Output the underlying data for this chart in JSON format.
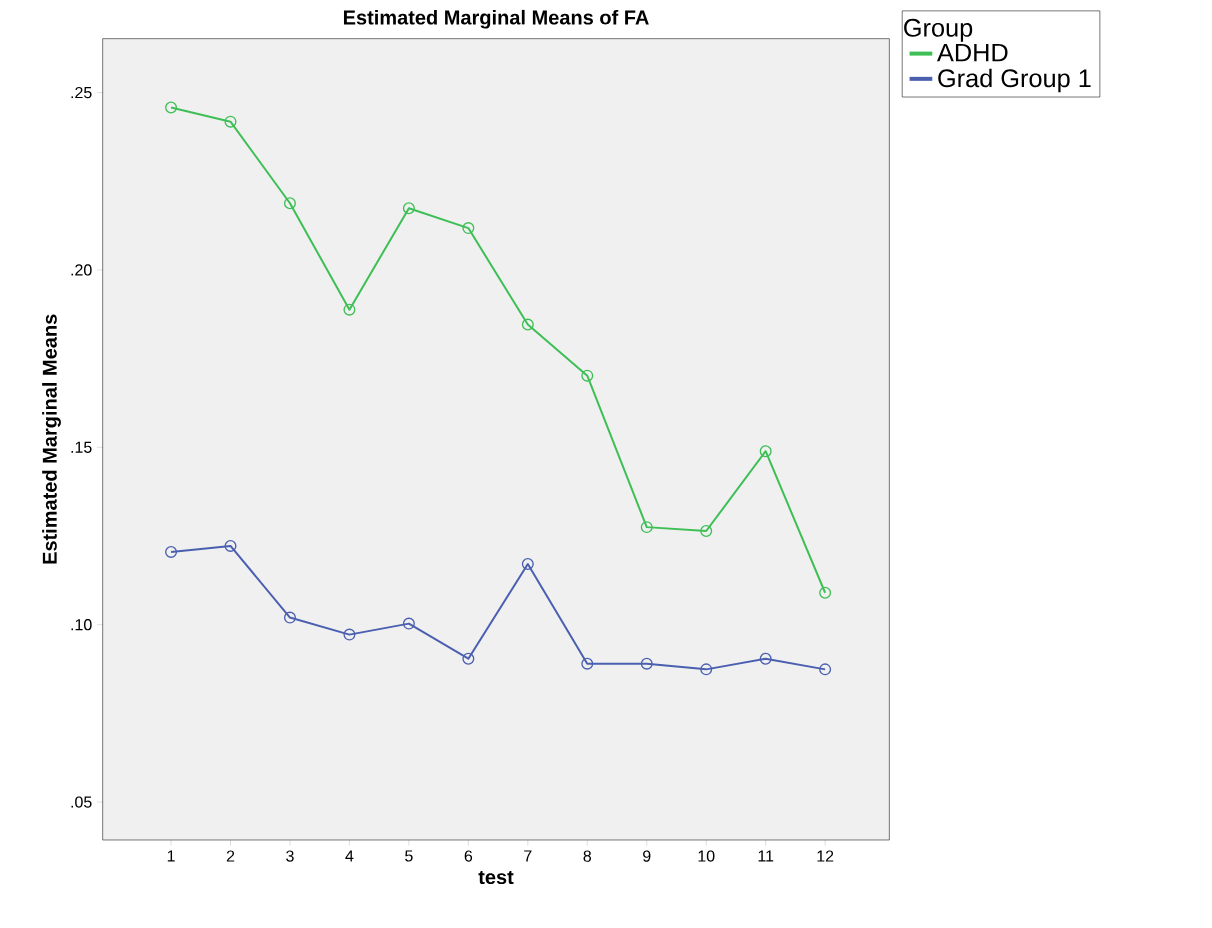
{
  "chart_data": {
    "type": "line",
    "title": "Estimated Marginal Means of FA",
    "xlabel": "test",
    "ylabel": "Estimated Marginal Means",
    "legend_title": "Group",
    "legend": "top right",
    "marker": "circle",
    "grid": false,
    "x": [
      1,
      2,
      3,
      4,
      5,
      6,
      7,
      8,
      9,
      10,
      11,
      12
    ],
    "series": [
      {
        "name": "ADHD",
        "color": "#3dbf55",
        "values": [
          0.2458,
          0.2418,
          0.2188,
          0.1888,
          0.2174,
          0.2118,
          0.1846,
          0.1702,
          0.1275,
          0.1264,
          0.1489,
          0.109
        ]
      },
      {
        "name": "Grad Group 1",
        "color": "#4a5fb0",
        "values": [
          0.1205,
          0.1222,
          0.102,
          0.0972,
          0.1003,
          0.0904,
          0.1171,
          0.089,
          0.089,
          0.0874,
          0.0904,
          0.0874
        ]
      }
    ],
    "xlim": [
      -0.15,
      13.08
    ],
    "xticks": [
      1,
      2,
      3,
      4,
      5,
      6,
      7,
      8,
      9,
      10,
      11,
      12
    ],
    "ylim": [
      0.0393,
      0.2652
    ],
    "yticks": [
      {
        "value": 0.05,
        "label": ".05"
      },
      {
        "value": 0.1,
        "label": ".10"
      },
      {
        "value": 0.15,
        "label": ".15"
      },
      {
        "value": 0.2,
        "label": ".20"
      },
      {
        "value": 0.25,
        "label": ".25"
      }
    ]
  }
}
